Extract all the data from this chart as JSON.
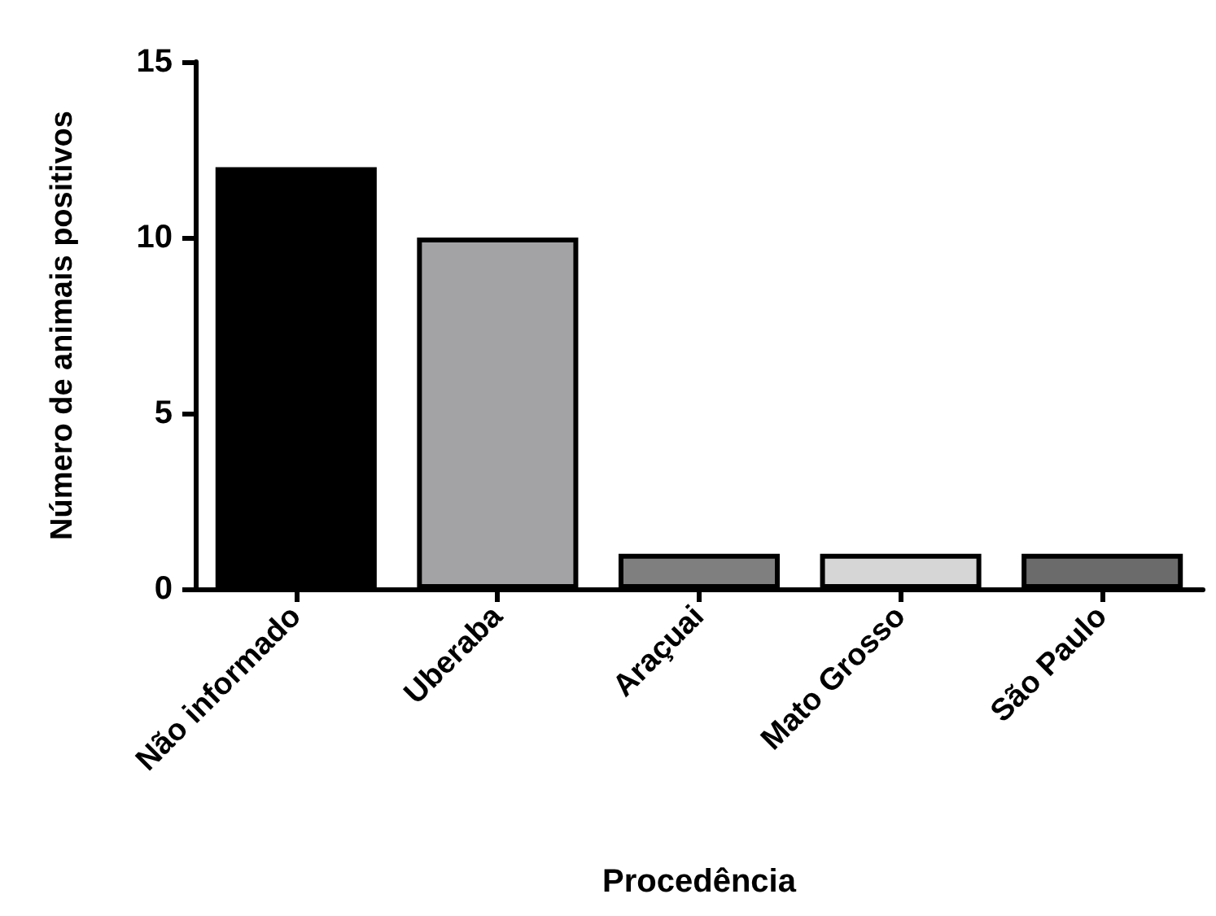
{
  "chart_data": {
    "type": "bar",
    "xlabel": "Procedência",
    "ylabel": "Número de animais positivos",
    "categories": [
      "Não informado",
      "Uberaba",
      "Araçuai",
      "Mato Grosso",
      "São Paulo"
    ],
    "values": [
      12,
      10,
      1,
      1,
      1
    ],
    "colors": [
      "#000000",
      "#a3a3a6",
      "#7f7f7f",
      "#d6d6d6",
      "#6b6b6b"
    ],
    "ylim": [
      0,
      15
    ],
    "yticks": [
      0,
      5,
      10,
      15
    ]
  }
}
